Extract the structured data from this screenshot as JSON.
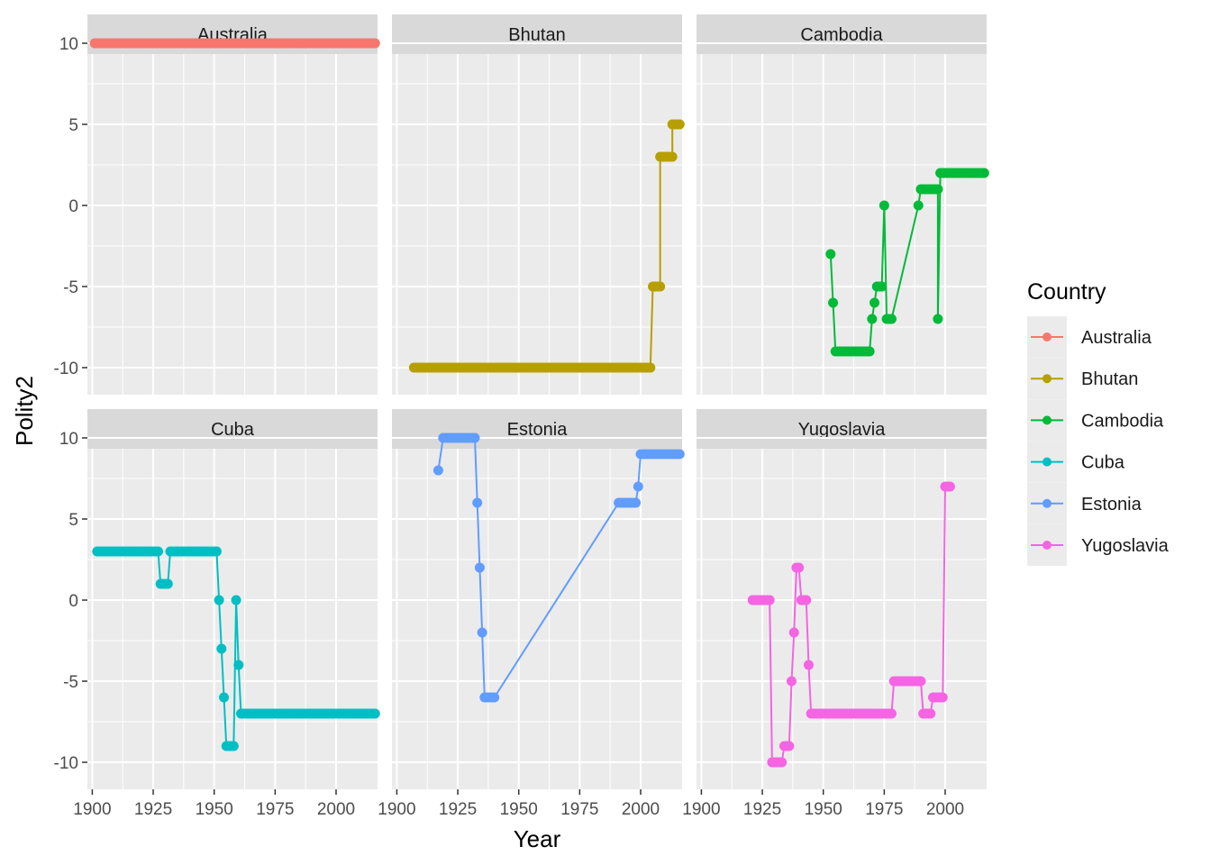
{
  "colors": {
    "panel_bg": "#EBEBEB",
    "strip_bg": "#D9D9D9",
    "grid": "#FFFFFF",
    "text": "#4D4D4D",
    "title_text": "#000000"
  },
  "chart_data": {
    "type": "line",
    "facet_type": "facet_wrap",
    "xlabel": "Year",
    "ylabel": "Polity2",
    "xlim": [
      1898,
      2017
    ],
    "ylim": [
      -11,
      10
    ],
    "xticks": [
      1900,
      1925,
      1950,
      1975,
      2000
    ],
    "yticks": [
      -10,
      -5,
      0,
      5,
      10
    ],
    "grid": true,
    "legend": {
      "title": "Country",
      "position": "right",
      "entries": [
        {
          "name": "Australia",
          "color": "#F8766D"
        },
        {
          "name": "Bhutan",
          "color": "#B79F00"
        },
        {
          "name": "Cambodia",
          "color": "#00BA38"
        },
        {
          "name": "Cuba",
          "color": "#00BFC4"
        },
        {
          "name": "Estonia",
          "color": "#619CFF"
        },
        {
          "name": "Yugoslavia",
          "color": "#F564E3"
        }
      ]
    },
    "series": [
      {
        "name": "Australia",
        "color": "#F8766D",
        "points": [
          [
            1901,
            10
          ],
          [
            2016,
            10
          ]
        ]
      },
      {
        "name": "Bhutan",
        "color": "#B79F00",
        "points": [
          [
            1907,
            -10
          ],
          [
            2004,
            -10
          ],
          [
            2005,
            -5
          ],
          [
            2008,
            -5
          ],
          [
            2008,
            3
          ],
          [
            2013,
            3
          ],
          [
            2013,
            5
          ],
          [
            2016,
            5
          ]
        ]
      },
      {
        "name": "Cambodia",
        "color": "#00BA38",
        "points": [
          [
            1953,
            -3
          ],
          [
            1954,
            -6
          ],
          [
            1955,
            -9
          ],
          [
            1969,
            -9
          ],
          [
            1970,
            -7
          ],
          [
            1971,
            -6
          ],
          [
            1972,
            -5
          ],
          [
            1974,
            -5
          ],
          [
            1975,
            0
          ],
          [
            1976,
            -7
          ],
          [
            1978,
            -7
          ],
          [
            1989,
            0
          ],
          [
            1990,
            1
          ],
          [
            1997,
            1
          ],
          [
            1997,
            -7
          ],
          [
            1998,
            2
          ],
          [
            2016,
            2
          ]
        ]
      },
      {
        "name": "Cuba",
        "color": "#00BFC4",
        "points": [
          [
            1902,
            3
          ],
          [
            1927,
            3
          ],
          [
            1928,
            1
          ],
          [
            1931,
            1
          ],
          [
            1932,
            3
          ],
          [
            1951,
            3
          ],
          [
            1952,
            0
          ],
          [
            1953,
            -3
          ],
          [
            1954,
            -6
          ],
          [
            1955,
            -9
          ],
          [
            1958,
            -9
          ],
          [
            1959,
            0
          ],
          [
            1960,
            -4
          ],
          [
            1961,
            -7
          ],
          [
            2016,
            -7
          ]
        ]
      },
      {
        "name": "Estonia",
        "color": "#619CFF",
        "points": [
          [
            1917,
            8
          ],
          [
            1919,
            10
          ],
          [
            1932,
            10
          ],
          [
            1933,
            6
          ],
          [
            1934,
            2
          ],
          [
            1935,
            -2
          ],
          [
            1936,
            -6
          ],
          [
            1940,
            -6
          ],
          [
            1991,
            6
          ],
          [
            1998,
            6
          ],
          [
            1999,
            7
          ],
          [
            2000,
            9
          ],
          [
            2016,
            9
          ]
        ]
      },
      {
        "name": "Yugoslavia",
        "color": "#F564E3",
        "points": [
          [
            1921,
            0
          ],
          [
            1928,
            0
          ],
          [
            1929,
            -10
          ],
          [
            1933,
            -10
          ],
          [
            1934,
            -9
          ],
          [
            1936,
            -9
          ],
          [
            1937,
            -5
          ],
          [
            1938,
            -2
          ],
          [
            1939,
            2
          ],
          [
            1940,
            2
          ],
          [
            1941,
            0
          ],
          [
            1943,
            0
          ],
          [
            1944,
            -4
          ],
          [
            1945,
            -7
          ],
          [
            1978,
            -7
          ],
          [
            1979,
            -5
          ],
          [
            1990,
            -5
          ],
          [
            1991,
            -7
          ],
          [
            1994,
            -7
          ],
          [
            1995,
            -6
          ],
          [
            1999,
            -6
          ],
          [
            2000,
            7
          ],
          [
            2002,
            7
          ]
        ]
      }
    ]
  }
}
